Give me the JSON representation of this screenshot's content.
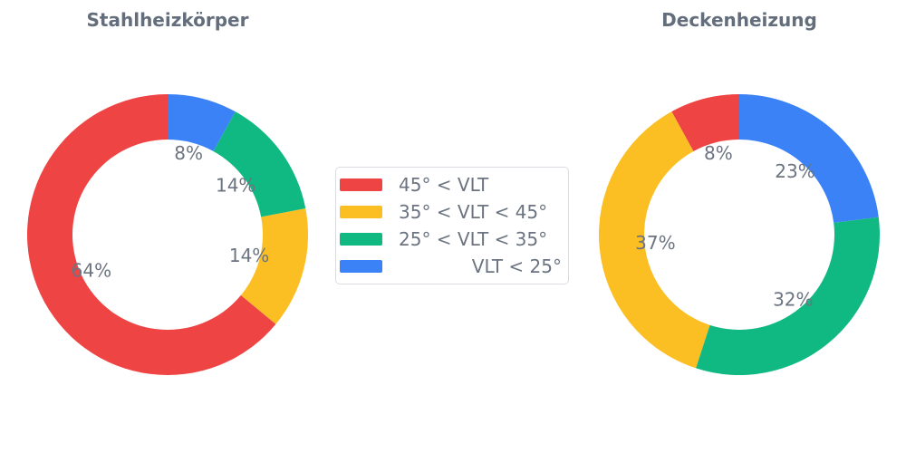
{
  "colors": {
    "red": "#EF4444",
    "yellow": "#FBBF24",
    "green": "#10B981",
    "blue": "#3B82F6",
    "text": "#6B7480",
    "title_text": "#636D7B",
    "legend_border": "#D9DDE2",
    "background": "#FFFFFF"
  },
  "legend": {
    "items": [
      {
        "label": "45° < VLT",
        "color": "#EF4444",
        "align": "left"
      },
      {
        "label": "35° < VLT < 45°",
        "color": "#FBBF24",
        "align": "left"
      },
      {
        "label": "25° < VLT < 35°",
        "color": "#10B981",
        "align": "left"
      },
      {
        "label": "VLT < 25°",
        "color": "#3B82F6",
        "align": "right"
      }
    ]
  },
  "chart_data": [
    {
      "type": "pie",
      "subtype": "donut",
      "title": "Stahlheizkörper",
      "hole_ratio": 0.68,
      "start_angle": 90,
      "direction": "counterclockwise",
      "label_position": "inside",
      "categories": [
        "45° < VLT",
        "35° < VLT < 45°",
        "25° < VLT < 35°",
        "VLT < 25°"
      ],
      "values": [
        64,
        14,
        14,
        8
      ],
      "labels": [
        "64%",
        "14%",
        "14%",
        "8%"
      ],
      "colors": [
        "#EF4444",
        "#FBBF24",
        "#10B981",
        "#3B82F6"
      ],
      "unit": "%"
    },
    {
      "type": "pie",
      "subtype": "donut",
      "title": "Deckenheizung",
      "hole_ratio": 0.68,
      "start_angle": 90,
      "direction": "counterclockwise",
      "label_position": "inside",
      "categories": [
        "45° < VLT",
        "35° < VLT < 45°",
        "25° < VLT < 35°",
        "VLT < 25°"
      ],
      "values": [
        8,
        37,
        32,
        23
      ],
      "labels": [
        "8%",
        "37%",
        "32%",
        "23%"
      ],
      "colors": [
        "#EF4444",
        "#FBBF24",
        "#10B981",
        "#3B82F6"
      ],
      "unit": "%"
    }
  ]
}
